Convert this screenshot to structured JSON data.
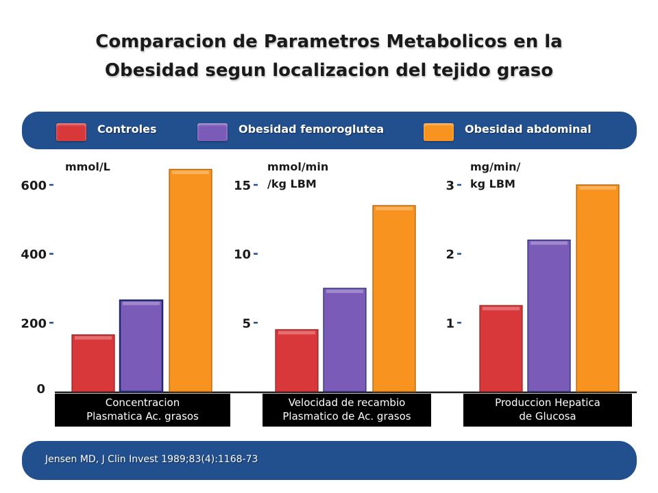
{
  "title_lines": [
    "Comparacion de Parametros Metabolicos en la",
    "Obesidad segun localizacion del tejido graso"
  ],
  "legend": [
    {
      "label": "Controles",
      "color": "#d9383a"
    },
    {
      "label": "Obesidad femoroglutea",
      "color": "#7b5bb8"
    },
    {
      "label": "Obesidad abdominal",
      "color": "#f7931e"
    }
  ],
  "source": "Jensen MD, J Clin Invest 1989;83(4):1168-73",
  "chart_data": [
    {
      "type": "bar",
      "unit_lines": [
        "mmol/L"
      ],
      "categories": [
        "Controles",
        "Obesidad femoroglutea",
        "Obesidad abdominal"
      ],
      "values": [
        165,
        265,
        645
      ],
      "ylim": [
        0,
        600
      ],
      "yticks": [
        "200",
        "400",
        "600"
      ],
      "zero_label": "0",
      "xlabel_lines": [
        "Concentracion",
        "Plasmatica Ac. grasos"
      ]
    },
    {
      "type": "bar",
      "unit_lines": [
        "mmol/min",
        "/kg LBM"
      ],
      "categories": [
        "Controles",
        "Obesidad femoroglutea",
        "Obesidad abdominal"
      ],
      "values": [
        4.5,
        7.5,
        13.5
      ],
      "ylim": [
        0,
        15
      ],
      "yticks": [
        "5",
        "10",
        "15"
      ],
      "xlabel_lines": [
        "Velocidad de recambio",
        "Plasmatico de Ac. grasos"
      ]
    },
    {
      "type": "bar",
      "unit_lines": [
        "mg/min/",
        "kg LBM"
      ],
      "categories": [
        "Controles",
        "Obesidad femoroglutea",
        "Obesidad abdominal"
      ],
      "values": [
        1.25,
        2.2,
        3.0
      ],
      "ylim": [
        0,
        3
      ],
      "yticks": [
        "1",
        "2",
        "3"
      ],
      "xlabel_lines": [
        "Produccion Hepatica",
        "de Glucosa"
      ]
    }
  ]
}
